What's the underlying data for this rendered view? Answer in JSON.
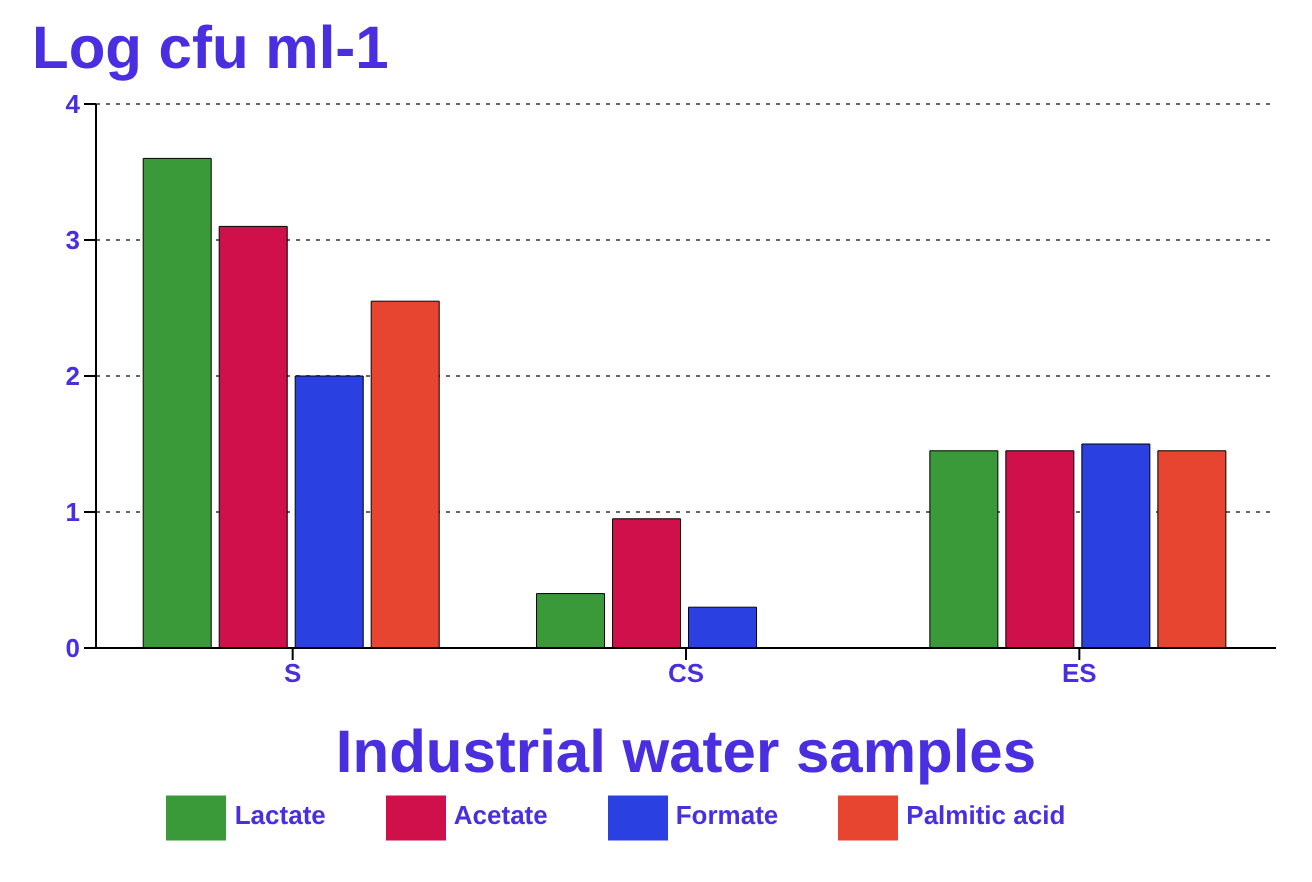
{
  "chart_data": {
    "type": "bar",
    "title": "Log cfu ml-1",
    "xlabel": "Industrial water samples",
    "categories": [
      "S",
      "CS",
      "ES"
    ],
    "series": [
      {
        "name": "Lactate",
        "color": "#3a9a3a",
        "values": [
          3.6,
          0.4,
          1.45
        ]
      },
      {
        "name": "Acetate",
        "color": "#d0104a",
        "values": [
          3.1,
          0.95,
          1.45
        ]
      },
      {
        "name": "Formate",
        "color": "#2a40e0",
        "values": [
          2.0,
          0.3,
          1.5
        ]
      },
      {
        "name": "Palmitic acid",
        "color": "#e84530",
        "values": [
          2.55,
          0,
          1.45
        ]
      }
    ],
    "ylim": [
      0,
      4
    ],
    "yticks": [
      0,
      1,
      2,
      3,
      4
    ],
    "grid": "y",
    "legend": "bottom"
  }
}
